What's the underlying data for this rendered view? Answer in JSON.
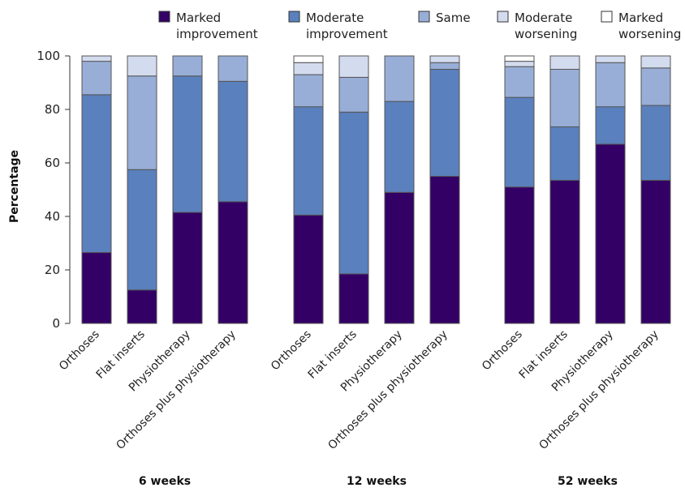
{
  "chart_data": {
    "type": "bar",
    "stacked": true,
    "ylabel": "Percentage",
    "ylim": [
      0,
      100
    ],
    "yticks": [
      0,
      20,
      40,
      60,
      80,
      100
    ],
    "grid": false,
    "legend_position": "top",
    "groups": [
      {
        "label": "6 weeks",
        "categories": [
          "Orthoses",
          "Flat inserts",
          "Physiotherapy",
          "Orthoses plus physiotherapy"
        ],
        "series": [
          {
            "name": "Marked improvement",
            "values": [
              26.5,
              12.5,
              41.5,
              45.5
            ]
          },
          {
            "name": "Moderate improvement",
            "values": [
              59,
              45,
              51,
              45
            ]
          },
          {
            "name": "Same",
            "values": [
              12.5,
              35,
              7.5,
              9.5
            ]
          },
          {
            "name": "Moderate worsening",
            "values": [
              2,
              7.5,
              0,
              0
            ]
          },
          {
            "name": "Marked worsening",
            "values": [
              0,
              0,
              0,
              0
            ]
          }
        ]
      },
      {
        "label": "12 weeks",
        "categories": [
          "Orthoses",
          "Flat inserts",
          "Physiotherapy",
          "Orthoses plus physiotherapy"
        ],
        "series": [
          {
            "name": "Marked improvement",
            "values": [
              40.5,
              18.5,
              49,
              55
            ]
          },
          {
            "name": "Moderate improvement",
            "values": [
              40.5,
              60.5,
              34,
              40
            ]
          },
          {
            "name": "Same",
            "values": [
              12,
              13,
              17,
              2.5
            ]
          },
          {
            "name": "Moderate worsening",
            "values": [
              4.5,
              8,
              0,
              2.5
            ]
          },
          {
            "name": "Marked worsening",
            "values": [
              2.5,
              0,
              0,
              0
            ]
          }
        ]
      },
      {
        "label": "52 weeks",
        "categories": [
          "Orthoses",
          "Flat inserts",
          "Physiotherapy",
          "Orthoses plus physiotherapy"
        ],
        "series": [
          {
            "name": "Marked improvement",
            "values": [
              51,
              53.5,
              67,
              53.5
            ]
          },
          {
            "name": "Moderate improvement",
            "values": [
              33.5,
              20,
              14,
              28
            ]
          },
          {
            "name": "Same",
            "values": [
              11.5,
              21.5,
              16.5,
              14
            ]
          },
          {
            "name": "Moderate worsening",
            "values": [
              2,
              5,
              2.5,
              4.5
            ]
          },
          {
            "name": "Marked worsening",
            "values": [
              2,
              0,
              0,
              0
            ]
          }
        ]
      }
    ],
    "legend": [
      {
        "line1": "Marked",
        "line2": "improvement",
        "color": "#330066"
      },
      {
        "line1": "Moderate",
        "line2": "improvement",
        "color": "#5a80bd"
      },
      {
        "line1": "Same",
        "line2": "",
        "color": "#98aed7"
      },
      {
        "line1": "Moderate",
        "line2": "worsening",
        "color": "#d3dbee"
      },
      {
        "line1": "Marked",
        "line2": "worsening",
        "color": "#ffffff"
      }
    ],
    "colors": [
      "#330066",
      "#5a80bd",
      "#98aed7",
      "#d3dbee",
      "#ffffff"
    ],
    "edge_color": "#555555"
  }
}
